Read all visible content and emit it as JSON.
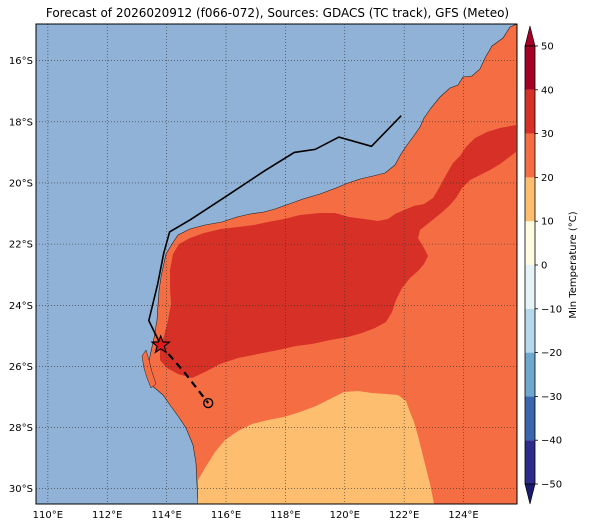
{
  "title": "Forecast of 2026020912 (f066-072), Sources: GDACS (TC track), GFS (Meteo)",
  "colorbar": {
    "label": "Min Temperature (°C)",
    "ticks": [
      "50",
      "40",
      "30",
      "20",
      "10",
      "0",
      "−10",
      "−20",
      "−30",
      "−40",
      "−50"
    ],
    "bands": [
      {
        "from": -50,
        "to": -40,
        "color": "#2b2c8c"
      },
      {
        "from": -40,
        "to": -30,
        "color": "#3a66ad"
      },
      {
        "from": -30,
        "to": -20,
        "color": "#6fa7cf"
      },
      {
        "from": -20,
        "to": -10,
        "color": "#b3d9ea"
      },
      {
        "from": -10,
        "to": 0,
        "color": "#e6f4f8"
      },
      {
        "from": 0,
        "to": 10,
        "color": "#fffbe0"
      },
      {
        "from": 10,
        "to": 20,
        "color": "#fdbf6f"
      },
      {
        "from": 20,
        "to": 30,
        "color": "#f46d43"
      },
      {
        "from": 30,
        "to": 40,
        "color": "#d73027"
      },
      {
        "from": 40,
        "to": 50,
        "color": "#a50026"
      }
    ]
  },
  "map": {
    "extent": {
      "lon": [
        109.6,
        125.8
      ],
      "lat": [
        -30.5,
        -14.8
      ]
    },
    "lat_ticks": [
      "16°S",
      "18°S",
      "20°S",
      "22°S",
      "24°S",
      "26°S",
      "28°S",
      "30°S"
    ],
    "lon_ticks": [
      "110°E",
      "112°E",
      "114°E",
      "116°E",
      "118°E",
      "120°E",
      "122°E",
      "124°E"
    ],
    "ocean_color": "#8fb2d6",
    "past_track": [
      [
        121.9,
        -17.8
      ],
      [
        120.9,
        -18.8
      ],
      [
        119.8,
        -18.5
      ],
      [
        119.0,
        -18.9
      ],
      [
        118.3,
        -19.0
      ],
      [
        117.3,
        -19.6
      ],
      [
        115.9,
        -20.5
      ],
      [
        114.8,
        -21.2
      ],
      [
        114.1,
        -21.6
      ],
      [
        113.9,
        -22.3
      ],
      [
        113.7,
        -23.3
      ],
      [
        113.4,
        -24.5
      ],
      [
        113.8,
        -25.3
      ]
    ],
    "forecast_track": [
      [
        113.8,
        -25.3
      ],
      [
        114.6,
        -26.2
      ],
      [
        115.4,
        -27.2
      ]
    ],
    "current_position": [
      113.8,
      -25.3
    ],
    "forecast_position": [
      115.4,
      -27.2
    ]
  }
}
